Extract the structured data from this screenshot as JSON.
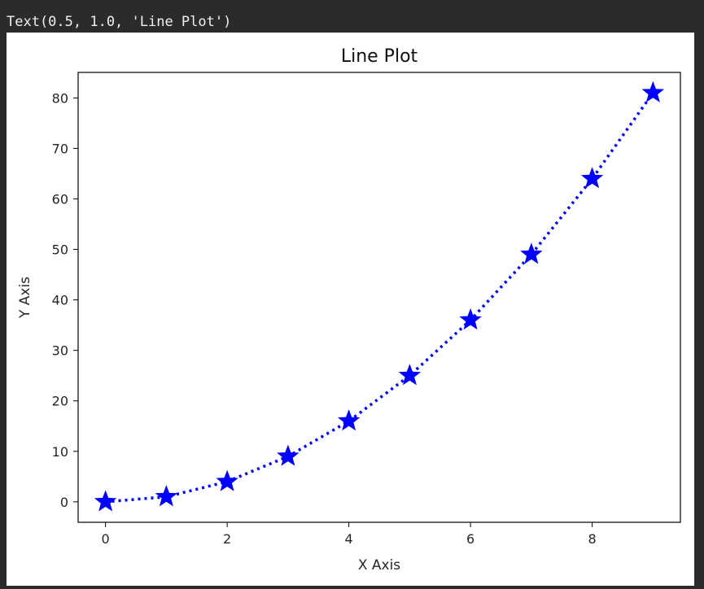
{
  "output": {
    "text": "Text(0.5, 1.0, 'Line Plot')"
  },
  "chart_data": {
    "type": "line",
    "title": "Line Plot",
    "xlabel": "X Axis",
    "ylabel": "Y Axis",
    "x": [
      0,
      1,
      2,
      3,
      4,
      5,
      6,
      7,
      8,
      9
    ],
    "y": [
      0,
      1,
      4,
      9,
      16,
      25,
      36,
      49,
      64,
      81
    ],
    "xlim": [
      -0.45,
      9.45
    ],
    "ylim": [
      -4.05,
      85.05
    ],
    "xticks": [
      0,
      2,
      4,
      6,
      8
    ],
    "yticks": [
      0,
      10,
      20,
      30,
      40,
      50,
      60,
      70,
      80
    ],
    "line_style": "dotted",
    "marker": "star",
    "color": "#0000ff",
    "grid": false
  }
}
